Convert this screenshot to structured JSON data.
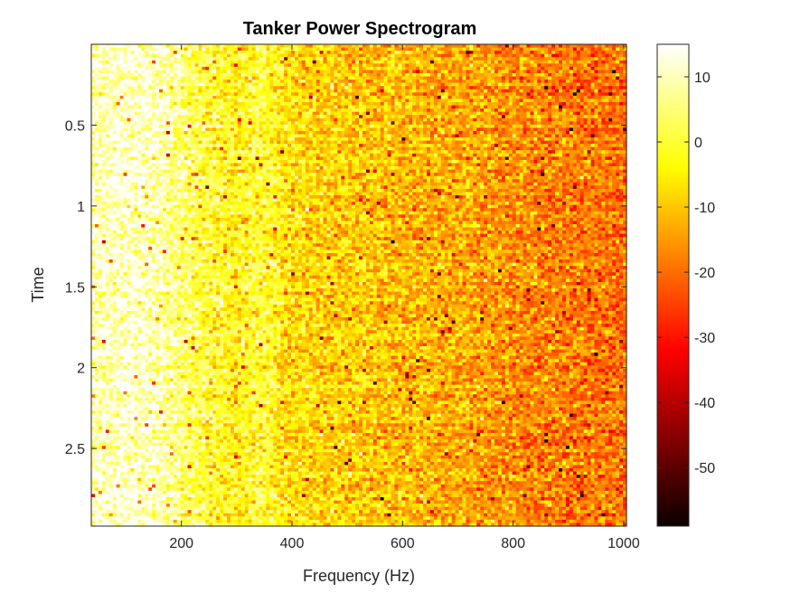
{
  "chart_data": {
    "type": "heatmap",
    "title": "Tanker Power Spectrogram",
    "xlabel": "Frequency (Hz)",
    "ylabel": "Time",
    "x_range": [
      37,
      1005
    ],
    "y_range": [
      0,
      2.98
    ],
    "y_direction": "reverse",
    "xticks": [
      200,
      400,
      600,
      800,
      1000
    ],
    "yticks": [
      0.5,
      1,
      1.5,
      2,
      2.5
    ],
    "colormap": "hot",
    "colorbar": {
      "range": [
        -59,
        15
      ],
      "ticks": [
        10,
        0,
        -10,
        -20,
        -30,
        -40,
        -50
      ]
    },
    "grid": {
      "freq_bins": 150,
      "time_bins": 150,
      "power_profile": [
        {
          "freq": 37,
          "db": 10
        },
        {
          "freq": 100,
          "db": 12
        },
        {
          "freq": 160,
          "db": 10
        },
        {
          "freq": 200,
          "db": 5
        },
        {
          "freq": 250,
          "db": 0
        },
        {
          "freq": 300,
          "db": -3
        },
        {
          "freq": 350,
          "db": 0
        },
        {
          "freq": 400,
          "db": -7
        },
        {
          "freq": 500,
          "db": -9
        },
        {
          "freq": 600,
          "db": -11
        },
        {
          "freq": 700,
          "db": -13
        },
        {
          "freq": 800,
          "db": -16
        },
        {
          "freq": 900,
          "db": -18
        },
        {
          "freq": 1005,
          "db": -20
        }
      ],
      "noise_db": 6
    }
  }
}
